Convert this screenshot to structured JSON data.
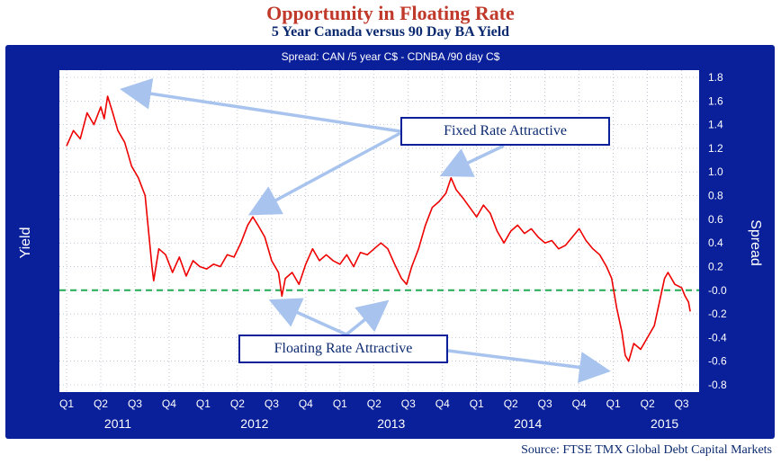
{
  "chart_data": {
    "type": "line",
    "title": "Opportunity in Floating Rate",
    "subtitle": "5 Year Canada versus 90 Day BA Yield",
    "series_label": "Spread: CAN /5 year C$  -  CDNBA /90 day C$",
    "ylabel_left": "Yield",
    "ylabel_right": "Spread",
    "ylim": [
      -0.8,
      1.8
    ],
    "yticks": [
      "1.8",
      "1.6",
      "1.4",
      "1.2",
      "1.0",
      "0.8",
      "0.6",
      "0.4",
      "0.2",
      "-0.0",
      "-0.2",
      "-0.4",
      "-0.6",
      "-0.8"
    ],
    "ytick_values": [
      1.8,
      1.6,
      1.4,
      1.2,
      1.0,
      0.8,
      0.6,
      0.4,
      0.2,
      0.0,
      -0.2,
      -0.4,
      -0.6,
      -0.8
    ],
    "quarters": [
      "Q1",
      "Q2",
      "Q3",
      "Q4",
      "Q1",
      "Q2",
      "Q3",
      "Q4",
      "Q1",
      "Q2",
      "Q3",
      "Q4",
      "Q1",
      "Q2",
      "Q3",
      "Q4",
      "Q1",
      "Q2",
      "Q3"
    ],
    "years": [
      {
        "label": "2011",
        "quarter_index": 1.5
      },
      {
        "label": "2012",
        "quarter_index": 5.5
      },
      {
        "label": "2013",
        "quarter_index": 9.5
      },
      {
        "label": "2014",
        "quarter_index": 13.5
      },
      {
        "label": "2015",
        "quarter_index": 17.5
      }
    ],
    "x_range": [
      0,
      18.3
    ],
    "reference_line": {
      "y": 0.0,
      "style": "dashed",
      "color": "#22aa55"
    },
    "series": [
      {
        "color": "#ee0000",
        "points": [
          [
            0,
            1.22
          ],
          [
            0.2,
            1.35
          ],
          [
            0.4,
            1.28
          ],
          [
            0.6,
            1.5
          ],
          [
            0.8,
            1.4
          ],
          [
            1.0,
            1.55
          ],
          [
            1.1,
            1.45
          ],
          [
            1.2,
            1.64
          ],
          [
            1.35,
            1.5
          ],
          [
            1.5,
            1.35
          ],
          [
            1.7,
            1.25
          ],
          [
            1.9,
            1.05
          ],
          [
            2.1,
            0.95
          ],
          [
            2.3,
            0.8
          ],
          [
            2.4,
            0.5
          ],
          [
            2.5,
            0.2
          ],
          [
            2.55,
            0.08
          ],
          [
            2.7,
            0.35
          ],
          [
            2.9,
            0.3
          ],
          [
            3.1,
            0.15
          ],
          [
            3.3,
            0.28
          ],
          [
            3.5,
            0.12
          ],
          [
            3.7,
            0.25
          ],
          [
            3.9,
            0.2
          ],
          [
            4.1,
            0.18
          ],
          [
            4.3,
            0.22
          ],
          [
            4.5,
            0.2
          ],
          [
            4.7,
            0.3
          ],
          [
            4.9,
            0.28
          ],
          [
            5.1,
            0.4
          ],
          [
            5.3,
            0.55
          ],
          [
            5.45,
            0.62
          ],
          [
            5.6,
            0.55
          ],
          [
            5.8,
            0.45
          ],
          [
            6.0,
            0.25
          ],
          [
            6.2,
            0.15
          ],
          [
            6.3,
            -0.05
          ],
          [
            6.4,
            0.1
          ],
          [
            6.6,
            0.15
          ],
          [
            6.8,
            0.05
          ],
          [
            7.0,
            0.22
          ],
          [
            7.2,
            0.35
          ],
          [
            7.4,
            0.25
          ],
          [
            7.6,
            0.3
          ],
          [
            7.8,
            0.25
          ],
          [
            8.0,
            0.22
          ],
          [
            8.2,
            0.3
          ],
          [
            8.4,
            0.2
          ],
          [
            8.6,
            0.32
          ],
          [
            8.8,
            0.3
          ],
          [
            9.0,
            0.35
          ],
          [
            9.2,
            0.4
          ],
          [
            9.4,
            0.35
          ],
          [
            9.6,
            0.22
          ],
          [
            9.8,
            0.1
          ],
          [
            9.95,
            0.05
          ],
          [
            10.1,
            0.2
          ],
          [
            10.3,
            0.35
          ],
          [
            10.5,
            0.55
          ],
          [
            10.7,
            0.7
          ],
          [
            10.9,
            0.75
          ],
          [
            11.1,
            0.82
          ],
          [
            11.25,
            0.95
          ],
          [
            11.4,
            0.85
          ],
          [
            11.6,
            0.78
          ],
          [
            11.8,
            0.7
          ],
          [
            12.0,
            0.62
          ],
          [
            12.2,
            0.72
          ],
          [
            12.4,
            0.65
          ],
          [
            12.6,
            0.5
          ],
          [
            12.8,
            0.4
          ],
          [
            13.0,
            0.5
          ],
          [
            13.2,
            0.55
          ],
          [
            13.4,
            0.48
          ],
          [
            13.6,
            0.52
          ],
          [
            13.8,
            0.45
          ],
          [
            14.0,
            0.4
          ],
          [
            14.2,
            0.42
          ],
          [
            14.4,
            0.35
          ],
          [
            14.6,
            0.38
          ],
          [
            14.8,
            0.45
          ],
          [
            15.0,
            0.52
          ],
          [
            15.2,
            0.42
          ],
          [
            15.4,
            0.35
          ],
          [
            15.6,
            0.3
          ],
          [
            15.8,
            0.2
          ],
          [
            15.95,
            0.1
          ],
          [
            16.1,
            -0.15
          ],
          [
            16.25,
            -0.35
          ],
          [
            16.35,
            -0.55
          ],
          [
            16.45,
            -0.6
          ],
          [
            16.6,
            -0.45
          ],
          [
            16.8,
            -0.5
          ],
          [
            17.0,
            -0.4
          ],
          [
            17.2,
            -0.3
          ],
          [
            17.35,
            -0.1
          ],
          [
            17.5,
            0.1
          ],
          [
            17.6,
            0.15
          ],
          [
            17.8,
            0.05
          ],
          [
            18.0,
            0.02
          ],
          [
            18.1,
            -0.05
          ],
          [
            18.2,
            -0.1
          ],
          [
            18.25,
            -0.18
          ]
        ]
      }
    ],
    "annotations": [
      {
        "text": "Fixed Rate Attractive"
      },
      {
        "text": "Floating Rate Attractive"
      }
    ]
  },
  "source": "Source: FTSE TMX Global Debt Capital Markets",
  "colors": {
    "frame": "#0a1f9a",
    "title": "#c0392b",
    "text_dark": "#0b2a6f",
    "line": "#ee0000",
    "arrow": "#a8c4ee"
  }
}
